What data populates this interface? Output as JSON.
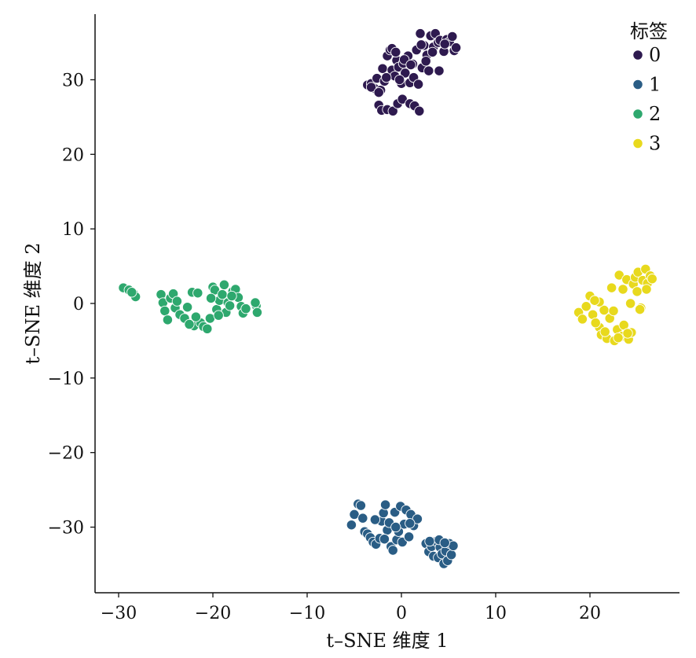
{
  "chart_data": {
    "type": "scatter",
    "xlabel": "t–SNE 维度 1",
    "ylabel": "t–SNE 维度 2",
    "xlim": [
      -32.5,
      29.5
    ],
    "ylim": [
      -38.8,
      38.8
    ],
    "x_ticks": [
      -30,
      -20,
      -10,
      0,
      10,
      20
    ],
    "x_tick_labels": [
      "−30",
      "−20",
      "−10",
      "0",
      "10",
      "20"
    ],
    "y_ticks": [
      -30,
      -20,
      -10,
      0,
      10,
      20,
      30
    ],
    "y_tick_labels": [
      "−30",
      "−20",
      "−10",
      "0",
      "10",
      "20",
      "30"
    ],
    "grid": false,
    "legend": {
      "title": "标签",
      "position": "top-right",
      "entries": [
        "0",
        "1",
        "2",
        "3"
      ]
    },
    "series": [
      {
        "name": "0",
        "color": "#2e1a4f",
        "points": [
          [
            -3.6,
            29.3
          ],
          [
            -3.2,
            29.5
          ],
          [
            -2.8,
            28.8
          ],
          [
            -2.6,
            30.2
          ],
          [
            -2.2,
            28.6
          ],
          [
            -2.0,
            31.5
          ],
          [
            -1.8,
            29.8
          ],
          [
            -1.5,
            33.2
          ],
          [
            -1.2,
            34.0
          ],
          [
            -1.0,
            31.3
          ],
          [
            -0.7,
            30.5
          ],
          [
            -0.5,
            32.6
          ],
          [
            -0.3,
            31.7
          ],
          [
            0.0,
            29.5
          ],
          [
            0.2,
            32.2
          ],
          [
            0.4,
            30.9
          ],
          [
            0.7,
            33.2
          ],
          [
            0.9,
            29.6
          ],
          [
            1.2,
            32.1
          ],
          [
            1.3,
            30.3
          ],
          [
            1.6,
            34.0
          ],
          [
            1.8,
            29.4
          ],
          [
            2.0,
            36.2
          ],
          [
            2.2,
            31.6
          ],
          [
            2.4,
            34.6
          ],
          [
            2.7,
            33.3
          ],
          [
            2.9,
            31.2
          ],
          [
            3.1,
            35.9
          ],
          [
            3.4,
            34.4
          ],
          [
            3.6,
            36.2
          ],
          [
            3.9,
            35.0
          ],
          [
            4.1,
            35.3
          ],
          [
            4.5,
            33.8
          ],
          [
            4.8,
            35.4
          ],
          [
            5.1,
            35.1
          ],
          [
            5.4,
            35.8
          ],
          [
            5.6,
            33.9
          ],
          [
            5.8,
            34.3
          ],
          [
            -2.4,
            26.6
          ],
          [
            -2.1,
            25.9
          ],
          [
            -1.5,
            26.0
          ],
          [
            -0.9,
            25.8
          ],
          [
            -0.4,
            26.8
          ],
          [
            0.1,
            27.4
          ],
          [
            0.9,
            26.8
          ],
          [
            1.4,
            26.5
          ],
          [
            1.9,
            25.8
          ],
          [
            -1.0,
            34.2
          ],
          [
            -0.6,
            33.7
          ],
          [
            -3.2,
            29.0
          ],
          [
            -2.4,
            28.3
          ],
          [
            0.3,
            32.7
          ],
          [
            1.0,
            32.0
          ],
          [
            2.6,
            32.5
          ],
          [
            4.0,
            31.2
          ],
          [
            3.3,
            33.7
          ],
          [
            2.1,
            34.7
          ],
          [
            -1.6,
            30.3
          ],
          [
            -0.2,
            30.0
          ],
          [
            4.6,
            34.8
          ]
        ]
      },
      {
        "name": "1",
        "color": "#2a5d85",
        "points": [
          [
            -5.3,
            -29.7
          ],
          [
            -5.0,
            -28.3
          ],
          [
            -4.6,
            -26.9
          ],
          [
            -4.3,
            -27.1
          ],
          [
            -4.1,
            -28.8
          ],
          [
            -3.9,
            -30.6
          ],
          [
            -3.6,
            -30.9
          ],
          [
            -3.3,
            -31.4
          ],
          [
            -3.0,
            -32.0
          ],
          [
            -2.7,
            -32.3
          ],
          [
            -2.3,
            -31.5
          ],
          [
            -2.1,
            -29.2
          ],
          [
            -1.9,
            -28.1
          ],
          [
            -1.7,
            -27.0
          ],
          [
            -1.5,
            -30.4
          ],
          [
            -1.3,
            -29.4
          ],
          [
            -1.1,
            -32.6
          ],
          [
            -0.9,
            -33.1
          ],
          [
            -0.7,
            -28.0
          ],
          [
            -0.5,
            -31.7
          ],
          [
            -0.3,
            -30.6
          ],
          [
            -0.1,
            -27.2
          ],
          [
            0.1,
            -32.0
          ],
          [
            0.3,
            -29.6
          ],
          [
            0.5,
            -27.7
          ],
          [
            0.8,
            -31.3
          ],
          [
            1.0,
            -28.3
          ],
          [
            1.3,
            -29.8
          ],
          [
            1.7,
            -28.9
          ],
          [
            2.6,
            -32.2
          ],
          [
            2.9,
            -33.3
          ],
          [
            3.2,
            -32.6
          ],
          [
            3.4,
            -33.9
          ],
          [
            3.7,
            -31.9
          ],
          [
            3.9,
            -34.1
          ],
          [
            4.1,
            -32.7
          ],
          [
            4.3,
            -33.6
          ],
          [
            4.5,
            -34.9
          ],
          [
            4.7,
            -33.2
          ],
          [
            4.9,
            -34.5
          ],
          [
            5.1,
            -32.2
          ],
          [
            5.3,
            -33.7
          ],
          [
            5.5,
            -32.5
          ],
          [
            3.0,
            -31.9
          ],
          [
            4.0,
            -31.7
          ],
          [
            4.6,
            -32.1
          ],
          [
            -1.8,
            -31.6
          ],
          [
            -0.6,
            -30.0
          ],
          [
            -2.8,
            -29.0
          ],
          [
            0.9,
            -29.5
          ]
        ]
      },
      {
        "name": "2",
        "color": "#2ea86e",
        "points": [
          [
            -29.5,
            2.1
          ],
          [
            -28.9,
            1.8
          ],
          [
            -28.4,
            1.3
          ],
          [
            -28.2,
            0.9
          ],
          [
            -28.6,
            1.5
          ],
          [
            -25.5,
            1.2
          ],
          [
            -25.3,
            0.1
          ],
          [
            -25.1,
            -1.0
          ],
          [
            -24.8,
            -2.2
          ],
          [
            -24.5,
            0.7
          ],
          [
            -24.2,
            1.3
          ],
          [
            -24.0,
            -0.6
          ],
          [
            -23.5,
            -1.5
          ],
          [
            -23.0,
            -2.0
          ],
          [
            -22.7,
            -0.5
          ],
          [
            -22.2,
            1.5
          ],
          [
            -22.0,
            -3.0
          ],
          [
            -21.6,
            1.4
          ],
          [
            -21.3,
            -2.6
          ],
          [
            -21.0,
            -3.1
          ],
          [
            -20.6,
            -3.4
          ],
          [
            -20.3,
            -2.0
          ],
          [
            -20.0,
            2.2
          ],
          [
            -19.8,
            1.8
          ],
          [
            -19.6,
            -0.8
          ],
          [
            -19.3,
            0.4
          ],
          [
            -19.0,
            1.2
          ],
          [
            -18.8,
            2.5
          ],
          [
            -18.6,
            -1.2
          ],
          [
            -18.4,
            0.1
          ],
          [
            -18.2,
            -0.3
          ],
          [
            -17.9,
            1.6
          ],
          [
            -17.6,
            1.9
          ],
          [
            -17.3,
            0.8
          ],
          [
            -17.0,
            -0.4
          ],
          [
            -16.8,
            -1.3
          ],
          [
            -16.5,
            -0.7
          ],
          [
            -15.4,
            -0.3
          ],
          [
            -15.3,
            -1.2
          ],
          [
            -15.5,
            0.1
          ],
          [
            -23.8,
            0.3
          ],
          [
            -21.8,
            -1.8
          ],
          [
            -20.2,
            0.7
          ],
          [
            -19.4,
            -1.6
          ],
          [
            -18.0,
            1.0
          ],
          [
            -22.5,
            -2.8
          ]
        ]
      },
      {
        "name": "3",
        "color": "#e8d91d",
        "points": [
          [
            18.8,
            -1.2
          ],
          [
            19.2,
            -2.1
          ],
          [
            19.6,
            -0.4
          ],
          [
            20.0,
            1.0
          ],
          [
            20.3,
            -1.5
          ],
          [
            20.7,
            0.3
          ],
          [
            21.0,
            -3.2
          ],
          [
            21.2,
            -4.2
          ],
          [
            21.5,
            -0.9
          ],
          [
            21.8,
            -4.7
          ],
          [
            22.1,
            -2.0
          ],
          [
            22.3,
            2.1
          ],
          [
            22.6,
            -5.0
          ],
          [
            22.9,
            -3.5
          ],
          [
            23.1,
            3.8
          ],
          [
            23.4,
            -4.4
          ],
          [
            23.6,
            -2.9
          ],
          [
            23.9,
            3.2
          ],
          [
            24.1,
            -4.8
          ],
          [
            24.4,
            -3.9
          ],
          [
            24.6,
            2.6
          ],
          [
            24.8,
            3.5
          ],
          [
            25.1,
            4.2
          ],
          [
            25.4,
            -0.6
          ],
          [
            25.6,
            3.1
          ],
          [
            25.9,
            4.6
          ],
          [
            26.1,
            2.7
          ],
          [
            26.4,
            3.7
          ],
          [
            26.6,
            3.3
          ],
          [
            25.0,
            1.6
          ],
          [
            23.5,
            1.9
          ],
          [
            22.5,
            -1.0
          ],
          [
            21.0,
            0.2
          ],
          [
            20.6,
            -2.6
          ],
          [
            24.0,
            -4.0
          ],
          [
            23.0,
            -4.6
          ],
          [
            21.6,
            -3.8
          ],
          [
            26.0,
            1.9
          ],
          [
            24.3,
            0.0
          ],
          [
            20.5,
            0.4
          ],
          [
            25.3,
            -0.8
          ]
        ]
      }
    ]
  }
}
